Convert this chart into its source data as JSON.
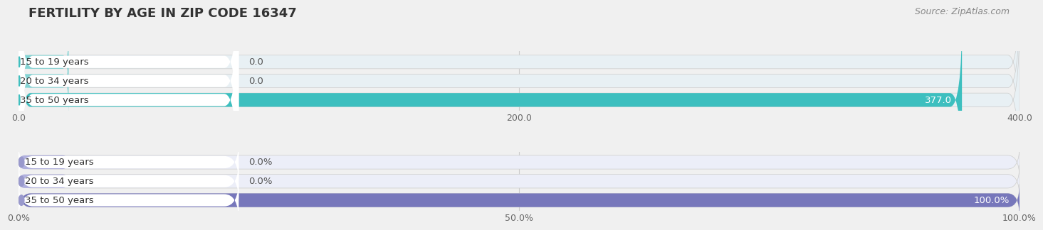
{
  "title": "FERTILITY BY AGE IN ZIP CODE 16347",
  "source": "Source: ZipAtlas.com",
  "top_chart": {
    "categories": [
      "15 to 19 years",
      "20 to 34 years",
      "35 to 50 years"
    ],
    "values": [
      0.0,
      0.0,
      377.0
    ],
    "xlim": [
      0,
      400
    ],
    "xticks": [
      0.0,
      200.0,
      400.0
    ],
    "bar_color": "#3dbfbf",
    "bar_color_full": "#1aabab",
    "pill_color": "#ffffff",
    "pill_circle_color": "#3dbfbf",
    "row_bg_color": "#e8f0f4",
    "zero_bar_color": "#85d4d4",
    "label_color_outside": "#555555",
    "label_color_inside": "#ffffff"
  },
  "bottom_chart": {
    "categories": [
      "15 to 19 years",
      "20 to 34 years",
      "35 to 50 years"
    ],
    "values": [
      0.0,
      0.0,
      100.0
    ],
    "xlim": [
      0,
      100
    ],
    "xticks": [
      0.0,
      50.0,
      100.0
    ],
    "xticklabels": [
      "0.0%",
      "50.0%",
      "100.0%"
    ],
    "bar_color": "#9999cc",
    "bar_color_full": "#7777bb",
    "pill_color": "#ffffff",
    "pill_circle_color": "#9999cc",
    "row_bg_color": "#eceef8",
    "zero_bar_color": "#b0b0dd",
    "label_color_outside": "#555555",
    "label_color_inside": "#ffffff"
  },
  "title_fontsize": 13,
  "source_fontsize": 9,
  "label_fontsize": 9.5,
  "tick_fontsize": 9,
  "fig_bg_color": "#f0f0f0",
  "title_color": "#333333",
  "source_color": "#888888",
  "row_gap_color": "#e0e0e8"
}
